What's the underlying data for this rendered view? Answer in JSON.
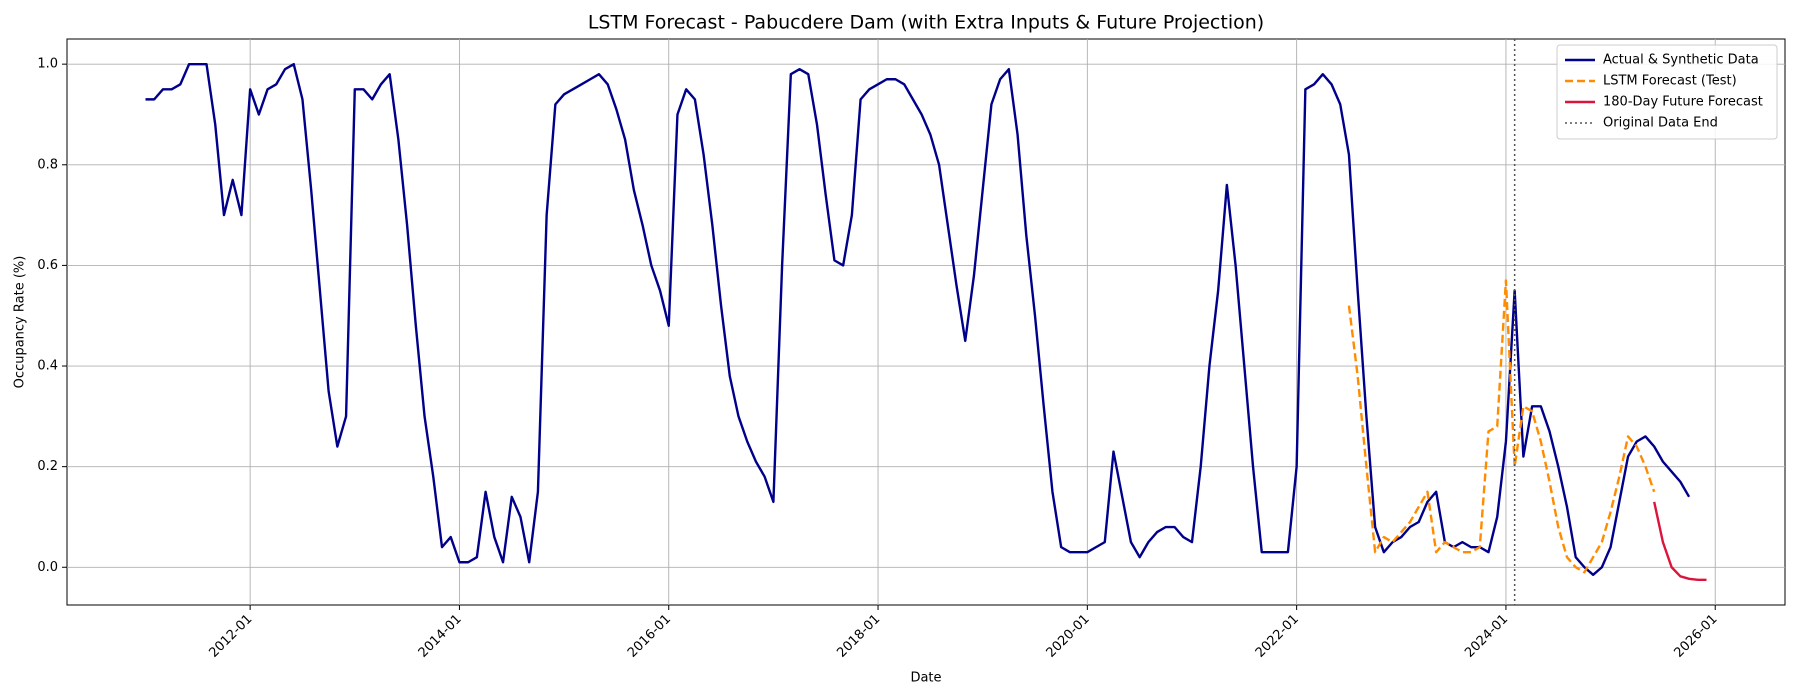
{
  "chart_data": {
    "type": "line",
    "title": "LSTM Forecast - Pabucdere Dam (with Extra Inputs & Future Projection)",
    "x_label": "Date",
    "y_label": "Occupancy Rate (%)",
    "xlim": [
      "2010-04",
      "2026-09"
    ],
    "ylim": [
      -0.075,
      1.05
    ],
    "xticks": [
      "2012-01",
      "2014-01",
      "2016-01",
      "2018-01",
      "2020-01",
      "2022-01",
      "2024-01",
      "2026-01"
    ],
    "yticks": [
      {
        "value": 0,
        "label": "0.0"
      },
      0.2,
      0.4,
      0.6,
      0.8,
      {
        "value": 1,
        "label": "1.0"
      }
    ],
    "grid": true,
    "legend": "upper right",
    "series": [
      {
        "name": "Actual & Synthetic Data",
        "color": "#00008b",
        "style": "solid",
        "x": [
          "2011-01",
          "2011-02",
          "2011-03",
          "2011-04",
          "2011-05",
          "2011-06",
          "2011-07",
          "2011-08",
          "2011-09",
          "2011-10",
          "2011-11",
          "2011-12",
          "2012-01",
          "2012-02",
          "2012-03",
          "2012-04",
          "2012-05",
          "2012-06",
          "2012-07",
          "2012-08",
          "2012-09",
          "2012-10",
          "2012-11",
          "2012-12",
          "2013-01",
          "2013-02",
          "2013-03",
          "2013-04",
          "2013-05",
          "2013-06",
          "2013-07",
          "2013-08",
          "2013-09",
          "2013-10",
          "2013-11",
          "2013-12",
          "2014-01",
          "2014-02",
          "2014-03",
          "2014-04",
          "2014-05",
          "2014-06",
          "2014-07",
          "2014-08",
          "2014-09",
          "2014-10",
          "2014-11",
          "2014-12",
          "2015-01",
          "2015-02",
          "2015-03",
          "2015-04",
          "2015-05",
          "2015-06",
          "2015-07",
          "2015-08",
          "2015-09",
          "2015-10",
          "2015-11",
          "2015-12",
          "2016-01",
          "2016-02",
          "2016-03",
          "2016-04",
          "2016-05",
          "2016-06",
          "2016-07",
          "2016-08",
          "2016-09",
          "2016-10",
          "2016-11",
          "2016-12",
          "2017-01",
          "2017-02",
          "2017-03",
          "2017-04",
          "2017-05",
          "2017-06",
          "2017-07",
          "2017-08",
          "2017-09",
          "2017-10",
          "2017-11",
          "2017-12",
          "2018-01",
          "2018-02",
          "2018-03",
          "2018-04",
          "2018-05",
          "2018-06",
          "2018-07",
          "2018-08",
          "2018-09",
          "2018-10",
          "2018-11",
          "2018-12",
          "2019-01",
          "2019-02",
          "2019-03",
          "2019-04",
          "2019-05",
          "2019-06",
          "2019-07",
          "2019-08",
          "2019-09",
          "2019-10",
          "2019-11",
          "2019-12",
          "2020-01",
          "2020-02",
          "2020-03",
          "2020-04",
          "2020-05",
          "2020-06",
          "2020-07",
          "2020-08",
          "2020-09",
          "2020-10",
          "2020-11",
          "2020-12",
          "2021-01",
          "2021-02",
          "2021-03",
          "2021-04",
          "2021-05",
          "2021-06",
          "2021-07",
          "2021-08",
          "2021-09",
          "2021-10",
          "2021-11",
          "2021-12",
          "2022-01",
          "2022-02",
          "2022-03",
          "2022-04",
          "2022-05",
          "2022-06",
          "2022-07",
          "2022-08",
          "2022-09",
          "2022-10",
          "2022-11",
          "2022-12",
          "2023-01",
          "2023-02",
          "2023-03",
          "2023-04",
          "2023-05",
          "2023-06",
          "2023-07",
          "2023-08",
          "2023-09",
          "2023-10",
          "2023-11",
          "2023-12",
          "2024-01",
          "2024-02",
          "2024-03",
          "2024-04",
          "2024-05",
          "2024-06",
          "2024-07",
          "2024-08",
          "2024-09",
          "2024-10",
          "2024-11",
          "2024-12",
          "2025-01",
          "2025-02",
          "2025-03",
          "2025-04",
          "2025-05",
          "2025-06",
          "2025-07",
          "2025-08",
          "2025-09",
          "2025-10"
        ],
        "values": [
          0.93,
          0.93,
          0.95,
          0.95,
          0.96,
          1.0,
          1.0,
          1.0,
          0.88,
          0.7,
          0.77,
          0.7,
          0.95,
          0.9,
          0.95,
          0.96,
          0.99,
          1.0,
          0.93,
          0.75,
          0.55,
          0.35,
          0.24,
          0.3,
          0.95,
          0.95,
          0.93,
          0.96,
          0.98,
          0.85,
          0.68,
          0.48,
          0.3,
          0.18,
          0.04,
          0.06,
          0.01,
          0.01,
          0.02,
          0.15,
          0.06,
          0.01,
          0.14,
          0.1,
          0.01,
          0.15,
          0.7,
          0.92,
          0.94,
          0.95,
          0.96,
          0.97,
          0.98,
          0.96,
          0.91,
          0.85,
          0.75,
          0.68,
          0.6,
          0.55,
          0.48,
          0.9,
          0.95,
          0.93,
          0.82,
          0.68,
          0.52,
          0.38,
          0.3,
          0.25,
          0.21,
          0.18,
          0.13,
          0.6,
          0.98,
          0.99,
          0.98,
          0.88,
          0.74,
          0.61,
          0.6,
          0.7,
          0.93,
          0.95,
          0.96,
          0.97,
          0.97,
          0.96,
          0.93,
          0.9,
          0.86,
          0.8,
          0.68,
          0.56,
          0.45,
          0.58,
          0.75,
          0.92,
          0.97,
          0.99,
          0.86,
          0.66,
          0.5,
          0.32,
          0.15,
          0.04,
          0.03,
          0.03,
          0.03,
          0.04,
          0.05,
          0.23,
          0.14,
          0.05,
          0.02,
          0.05,
          0.07,
          0.08,
          0.08,
          0.06,
          0.05,
          0.2,
          0.4,
          0.55,
          0.76,
          0.6,
          0.4,
          0.2,
          0.03,
          0.03,
          0.03,
          0.03,
          0.2,
          0.95,
          0.96,
          0.98,
          0.96,
          0.92,
          0.82,
          0.55,
          0.3,
          0.08,
          0.03,
          0.05,
          0.06,
          0.08,
          0.09,
          0.13,
          0.15,
          0.05,
          0.04,
          0.05,
          0.04,
          0.04,
          0.03,
          0.1,
          0.25,
          0.55,
          0.22,
          0.32,
          0.32,
          0.27,
          0.2,
          0.12,
          0.02,
          0.0,
          -0.015,
          0.0,
          0.04,
          0.13,
          0.22,
          0.25,
          0.26,
          0.24,
          0.21,
          0.19,
          0.17,
          0.14
        ]
      },
      {
        "name": "LSTM Forecast (Test)",
        "color": "#ff8c00",
        "style": "dashed",
        "x": [
          "2022-07",
          "2022-08",
          "2022-09",
          "2022-10",
          "2022-11",
          "2022-12",
          "2023-01",
          "2023-02",
          "2023-03",
          "2023-04",
          "2023-05",
          "2023-06",
          "2023-07",
          "2023-08",
          "2023-09",
          "2023-10",
          "2023-11",
          "2023-12",
          "2024-01",
          "2024-02",
          "2024-03",
          "2024-04",
          "2024-05",
          "2024-06",
          "2024-07",
          "2024-08",
          "2024-09",
          "2024-10",
          "2024-11",
          "2024-12",
          "2025-01",
          "2025-02",
          "2025-03",
          "2025-04",
          "2025-05",
          "2025-06"
        ],
        "values": [
          0.52,
          0.38,
          0.2,
          0.03,
          0.06,
          0.05,
          0.07,
          0.09,
          0.12,
          0.15,
          0.03,
          0.05,
          0.04,
          0.03,
          0.03,
          0.04,
          0.27,
          0.28,
          0.57,
          0.2,
          0.32,
          0.31,
          0.25,
          0.17,
          0.08,
          0.02,
          0.0,
          -0.01,
          0.02,
          0.05,
          0.11,
          0.18,
          0.26,
          0.24,
          0.2,
          0.15
        ]
      },
      {
        "name": "180-Day Future Forecast",
        "color": "#dc143c",
        "style": "solid",
        "x": [
          "2025-06",
          "2025-07",
          "2025-08",
          "2025-09",
          "2025-10",
          "2025-11",
          "2025-12"
        ],
        "values": [
          0.13,
          0.05,
          0.0,
          -0.018,
          -0.023,
          -0.025,
          -0.025
        ]
      }
    ],
    "vline": {
      "name": "Original Data End",
      "x": "2024-02",
      "color": "#555555",
      "style": "dotted"
    }
  }
}
